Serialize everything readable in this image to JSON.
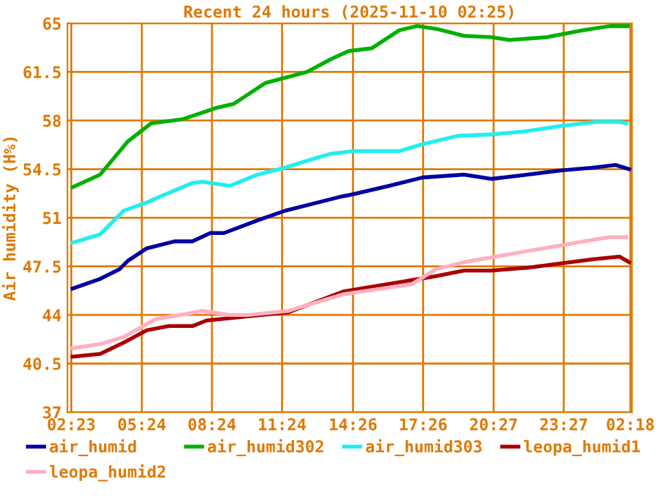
{
  "chart_data": {
    "type": "line",
    "title": "Recent 24 hours (2025-11-10 02:25)",
    "ylabel": "Air humidity (H%)",
    "xlim": [
      "2025-11-09T02:13",
      "2025-11-10T02:22"
    ],
    "xticks": [
      {
        "value": "2025-11-09T02:23",
        "label": "02:23"
      },
      {
        "value": "2025-11-09T05:24",
        "label": "05:24"
      },
      {
        "value": "2025-11-09T08:24",
        "label": "08:24"
      },
      {
        "value": "2025-11-09T11:24",
        "label": "11:24"
      },
      {
        "value": "2025-11-09T14:26",
        "label": "14:26"
      },
      {
        "value": "2025-11-09T17:26",
        "label": "17:26"
      },
      {
        "value": "2025-11-09T20:27",
        "label": "20:27"
      },
      {
        "value": "2025-11-09T23:27",
        "label": "23:27"
      },
      {
        "value": "2025-11-10T02:18",
        "label": "02:18"
      }
    ],
    "ylim": [
      37,
      65
    ],
    "yticks": [
      37,
      40.5,
      44,
      47.5,
      51,
      54.5,
      58,
      61.5,
      65
    ],
    "grid": true,
    "legend": "bottom",
    "marker": "none",
    "line_style": "solid",
    "series": [
      {
        "name": "air_humid",
        "color": "#0000a0",
        "x": [
          "2025-11-09T02:26",
          "2025-11-09T03:37",
          "2025-11-09T04:27",
          "2025-11-09T04:48",
          "2025-11-09T05:37",
          "2025-11-09T06:48",
          "2025-11-09T07:34",
          "2025-11-09T08:20",
          "2025-11-09T08:55",
          "2025-11-09T10:20",
          "2025-11-09T11:31",
          "2025-11-09T12:42",
          "2025-11-09T13:52",
          "2025-11-09T14:28",
          "2025-11-09T15:59",
          "2025-11-09T17:25",
          "2025-11-09T19:11",
          "2025-11-09T20:22",
          "2025-11-09T21:53",
          "2025-11-09T23:18",
          "2025-11-10T00:40",
          "2025-11-10T01:40",
          "2025-11-10T02:15"
        ],
        "values": [
          45.9,
          46.6,
          47.3,
          47.9,
          48.8,
          49.3,
          49.3,
          49.9,
          49.9,
          50.8,
          51.5,
          52.0,
          52.5,
          52.7,
          53.3,
          53.9,
          54.1,
          53.8,
          54.1,
          54.4,
          54.6,
          54.8,
          54.5
        ]
      },
      {
        "name": "air_humid302",
        "color": "#00b000",
        "x": [
          "2025-11-09T02:26",
          "2025-11-09T03:37",
          "2025-11-09T04:48",
          "2025-11-09T05:48",
          "2025-11-09T07:10",
          "2025-11-09T08:34",
          "2025-11-09T09:20",
          "2025-11-09T10:41",
          "2025-11-09T12:28",
          "2025-11-09T13:28",
          "2025-11-09T14:14",
          "2025-11-09T15:14",
          "2025-11-09T16:25",
          "2025-11-09T17:10",
          "2025-11-09T18:00",
          "2025-11-09T19:11",
          "2025-11-09T20:22",
          "2025-11-09T21:07",
          "2025-11-09T22:43",
          "2025-11-10T00:15",
          "2025-11-10T01:25",
          "2025-11-10T02:11"
        ],
        "values": [
          53.2,
          54.1,
          56.5,
          57.8,
          58.1,
          58.9,
          59.2,
          60.7,
          61.5,
          62.4,
          63.0,
          63.2,
          64.5,
          64.8,
          64.6,
          64.1,
          64.0,
          63.8,
          64.0,
          64.5,
          64.8,
          64.8
        ]
      },
      {
        "name": "air_humid303",
        "color": "#22eeee",
        "x": [
          "2025-11-09T02:26",
          "2025-11-09T03:37",
          "2025-11-09T04:37",
          "2025-11-09T05:37",
          "2025-11-09T06:34",
          "2025-11-09T07:34",
          "2025-11-09T07:59",
          "2025-11-09T09:10",
          "2025-11-09T10:20",
          "2025-11-09T11:31",
          "2025-11-09T12:28",
          "2025-11-09T13:28",
          "2025-11-09T14:28",
          "2025-11-09T16:25",
          "2025-11-09T17:25",
          "2025-11-09T18:56",
          "2025-11-09T20:22",
          "2025-11-09T21:43",
          "2025-11-09T23:18",
          "2025-11-10T00:50",
          "2025-11-10T01:50",
          "2025-11-10T02:08"
        ],
        "values": [
          49.2,
          49.8,
          51.5,
          52.1,
          52.8,
          53.5,
          53.6,
          53.3,
          54.1,
          54.6,
          55.1,
          55.6,
          55.8,
          55.8,
          56.3,
          56.9,
          57.0,
          57.2,
          57.6,
          57.9,
          57.9,
          57.8
        ]
      },
      {
        "name": "leopa_humid1",
        "color": "#aa0000",
        "x": [
          "2025-11-09T02:26",
          "2025-11-09T03:37",
          "2025-11-09T04:37",
          "2025-11-09T05:37",
          "2025-11-09T06:34",
          "2025-11-09T07:34",
          "2025-11-09T08:10",
          "2025-11-09T09:20",
          "2025-11-09T11:41",
          "2025-11-09T14:03",
          "2025-11-09T16:56",
          "2025-11-09T18:00",
          "2025-11-09T19:11",
          "2025-11-09T20:22",
          "2025-11-09T21:53",
          "2025-11-09T23:18",
          "2025-11-10T00:40",
          "2025-11-10T01:50",
          "2025-11-10T02:15"
        ],
        "values": [
          41.0,
          41.2,
          42.0,
          42.9,
          43.2,
          43.2,
          43.6,
          43.8,
          44.2,
          45.7,
          46.5,
          46.8,
          47.2,
          47.2,
          47.4,
          47.7,
          48.0,
          48.2,
          47.8
        ]
      },
      {
        "name": "leopa_humid2",
        "color": "#ffb0c0",
        "x": [
          "2025-11-09T02:26",
          "2025-11-09T03:37",
          "2025-11-09T04:37",
          "2025-11-09T05:59",
          "2025-11-09T07:23",
          "2025-11-09T07:59",
          "2025-11-09T09:10",
          "2025-11-09T09:56",
          "2025-11-09T11:41",
          "2025-11-09T14:03",
          "2025-11-09T16:56",
          "2025-11-09T18:00",
          "2025-11-09T19:11",
          "2025-11-09T20:32",
          "2025-11-09T21:53",
          "2025-11-09T23:18",
          "2025-11-10T00:40",
          "2025-11-10T01:25",
          "2025-11-10T02:08"
        ],
        "values": [
          41.6,
          41.9,
          42.4,
          43.7,
          44.1,
          44.3,
          44.0,
          44.0,
          44.3,
          45.5,
          46.2,
          47.3,
          47.8,
          48.2,
          48.6,
          49.0,
          49.4,
          49.6,
          49.6
        ]
      }
    ]
  }
}
